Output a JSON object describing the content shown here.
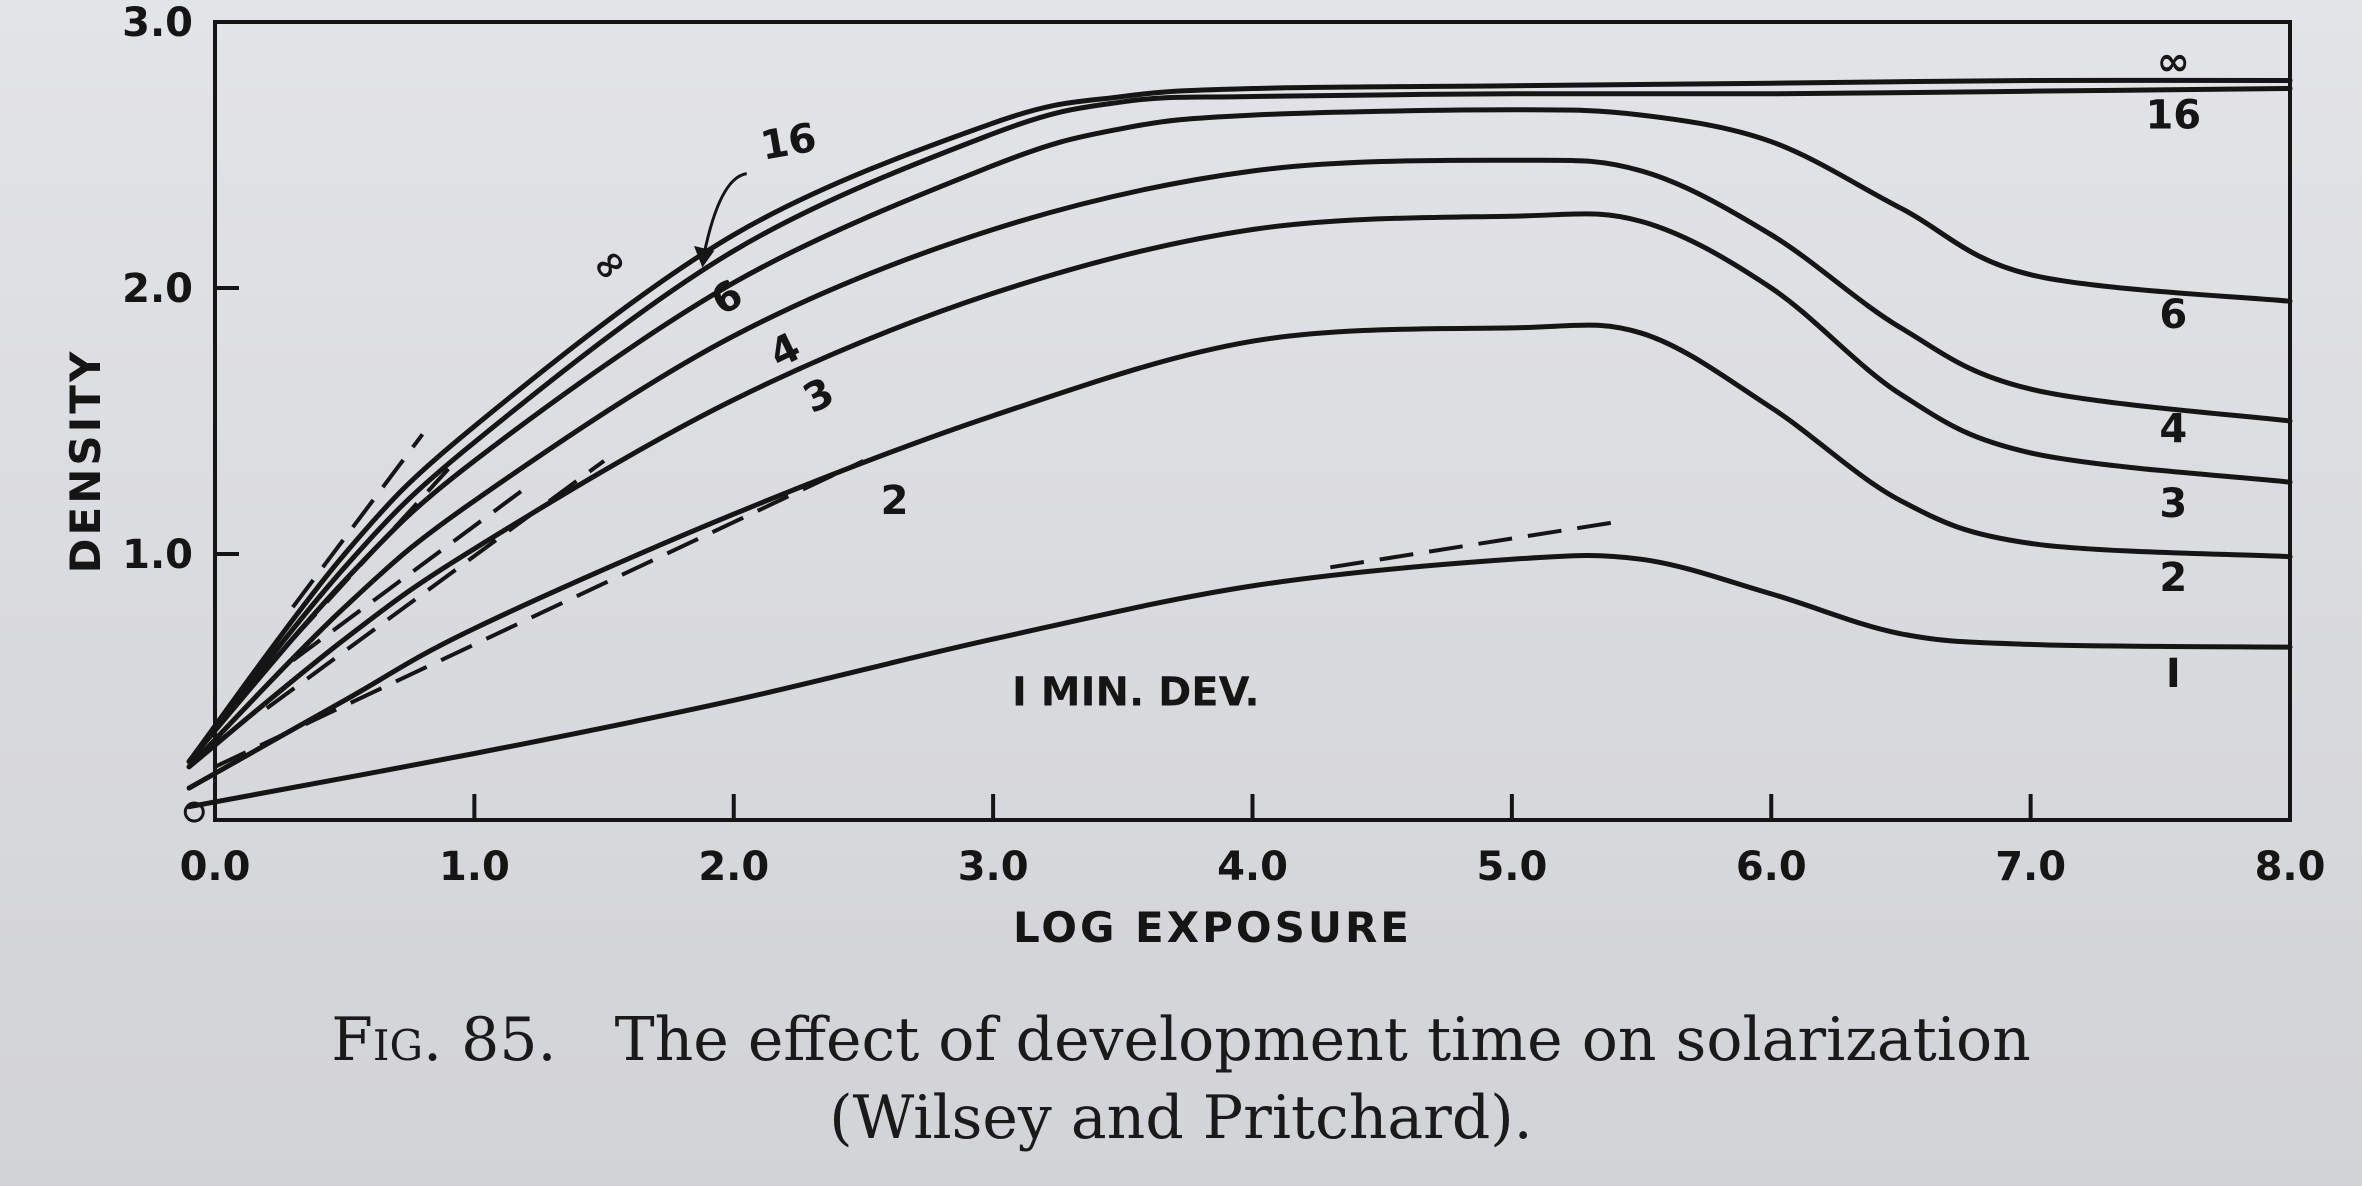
{
  "chart_data": {
    "type": "line",
    "xlabel": "LOG EXPOSURE",
    "ylabel": "DENSITY",
    "xlim": [
      0.0,
      8.0
    ],
    "ylim": [
      0.0,
      3.0
    ],
    "x_ticks": [
      "0.0",
      "1.0",
      "2.0",
      "3.0",
      "4.0",
      "5.0",
      "6.0",
      "7.0",
      "8.0"
    ],
    "y_ticks": [
      "1.0",
      "2.0",
      "3.0"
    ],
    "grid": false,
    "series": [
      {
        "name": "1",
        "start_label": "I MIN. DEV.",
        "end_label": "I",
        "x": [
          -0.1,
          1.0,
          2.0,
          3.0,
          4.0,
          5.0,
          5.5,
          6.0,
          6.5,
          7.0,
          8.0
        ],
        "y": [
          0.05,
          0.25,
          0.45,
          0.68,
          0.88,
          0.98,
          0.98,
          0.85,
          0.7,
          0.66,
          0.65
        ]
      },
      {
        "name": "2",
        "start_label": "2",
        "end_label": "2",
        "x": [
          -0.1,
          0.5,
          1.0,
          2.0,
          3.0,
          4.0,
          5.0,
          5.5,
          6.0,
          6.5,
          7.0,
          8.0
        ],
        "y": [
          0.12,
          0.45,
          0.72,
          1.15,
          1.52,
          1.8,
          1.85,
          1.83,
          1.55,
          1.2,
          1.04,
          0.99
        ]
      },
      {
        "name": "3",
        "start_label": "3",
        "end_label": "3",
        "x": [
          -0.1,
          0.5,
          1.0,
          2.0,
          3.0,
          4.0,
          5.0,
          5.5,
          6.0,
          6.5,
          7.0,
          8.0
        ],
        "y": [
          0.2,
          0.68,
          1.02,
          1.58,
          1.98,
          2.22,
          2.27,
          2.25,
          2.0,
          1.6,
          1.38,
          1.27
        ]
      },
      {
        "name": "4",
        "start_label": "4",
        "end_label": "4",
        "x": [
          -0.1,
          0.5,
          1.0,
          2.0,
          3.0,
          4.0,
          5.0,
          5.5,
          6.0,
          6.5,
          7.0,
          8.0
        ],
        "y": [
          0.2,
          0.8,
          1.2,
          1.82,
          2.22,
          2.44,
          2.48,
          2.44,
          2.2,
          1.85,
          1.62,
          1.5
        ]
      },
      {
        "name": "6",
        "start_label": "6",
        "end_label": "6",
        "x": [
          -0.1,
          0.5,
          1.0,
          2.0,
          3.0,
          3.5,
          4.0,
          5.0,
          5.5,
          6.0,
          6.5,
          7.0,
          8.0
        ],
        "y": [
          0.22,
          0.9,
          1.35,
          2.02,
          2.46,
          2.6,
          2.65,
          2.67,
          2.65,
          2.55,
          2.3,
          2.05,
          1.95
        ]
      },
      {
        "name": "16",
        "start_label": "16",
        "end_label": "16",
        "x": [
          -0.1,
          0.5,
          1.0,
          2.0,
          3.0,
          3.5,
          4.0,
          5.0,
          6.0,
          7.0,
          8.0
        ],
        "y": [
          0.22,
          0.95,
          1.42,
          2.14,
          2.58,
          2.7,
          2.72,
          2.73,
          2.73,
          2.74,
          2.75
        ]
      },
      {
        "name": "∞",
        "start_label": "∞",
        "end_label": "∞",
        "x": [
          -0.1,
          0.5,
          1.0,
          2.0,
          3.0,
          3.5,
          4.0,
          5.0,
          6.0,
          7.0,
          8.0
        ],
        "y": [
          0.22,
          1.0,
          1.48,
          2.2,
          2.62,
          2.72,
          2.75,
          2.76,
          2.77,
          2.78,
          2.78
        ]
      }
    ],
    "dashed_tangents": [
      {
        "of_series": "1",
        "x": [
          4.3,
          5.4
        ],
        "y": [
          0.95,
          1.12
        ]
      },
      {
        "of_series": "2",
        "x": [
          0.0,
          2.5
        ],
        "y": [
          0.2,
          1.35
        ]
      },
      {
        "of_series": "3",
        "x": [
          0.2,
          1.5
        ],
        "y": [
          0.42,
          1.35
        ]
      },
      {
        "of_series": "4",
        "x": [
          0.3,
          1.2
        ],
        "y": [
          0.6,
          1.25
        ]
      },
      {
        "of_series": "6",
        "x": [
          0.3,
          0.9
        ],
        "y": [
          0.68,
          1.32
        ]
      },
      {
        "of_series": "16",
        "x": [
          0.3,
          0.8
        ],
        "y": [
          0.8,
          1.45
        ]
      }
    ],
    "annotations": [
      {
        "text": "16",
        "points_to_series": "16"
      }
    ]
  },
  "caption": {
    "figure": "Fig. 85.",
    "text_line1": "The effect of development time on solarization",
    "text_line2": "(Wilsey and Pritchard)."
  },
  "colors": {
    "ink": "#151515",
    "paper": "#dcdde0"
  }
}
